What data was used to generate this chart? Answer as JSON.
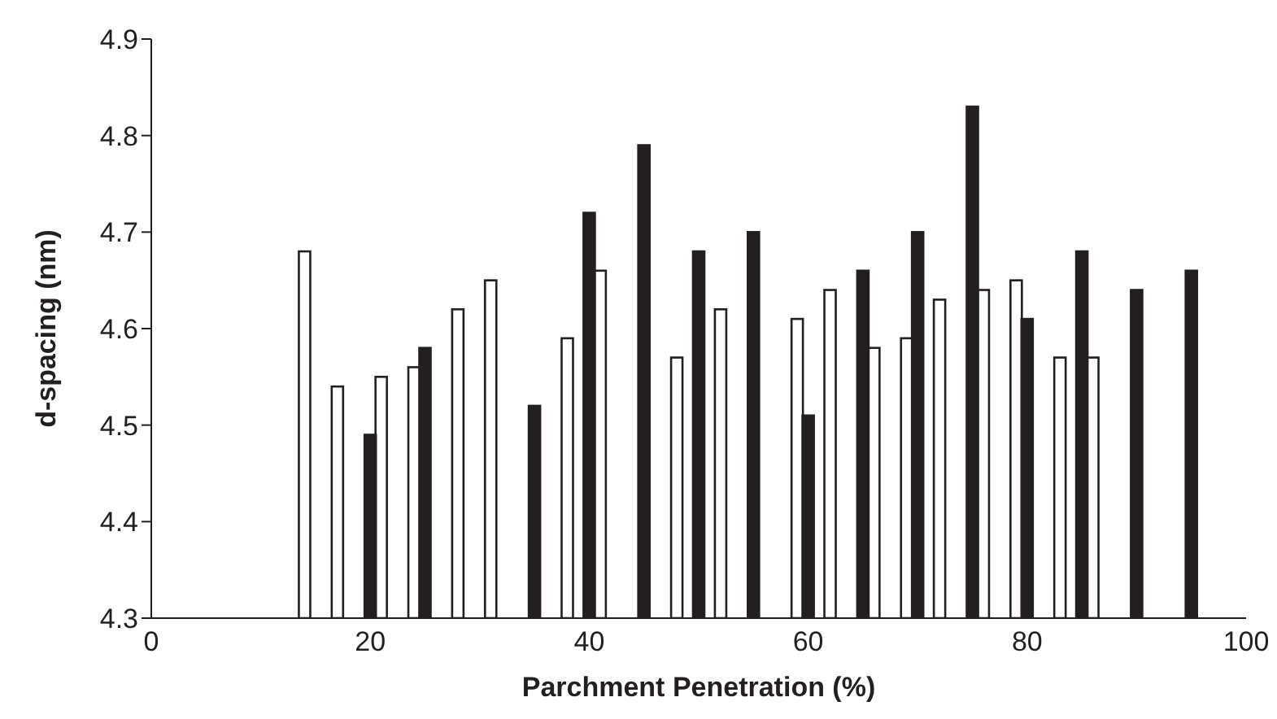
{
  "chart_data": {
    "type": "bar",
    "xlabel": "Parchment Penetration (%)",
    "ylabel": "d-spacing (nm)",
    "series": [
      {
        "color": "#ffffff",
        "x": [
          14,
          17,
          21,
          24,
          28,
          31,
          38,
          41,
          48,
          52,
          59,
          62,
          66,
          69,
          72,
          76,
          79,
          83,
          86
        ],
        "values": [
          4.68,
          4.54,
          4.55,
          4.56,
          4.62,
          4.65,
          4.59,
          4.66,
          4.57,
          4.62,
          4.61,
          4.64,
          4.58,
          4.59,
          4.63,
          4.64,
          4.65,
          4.57,
          4.57
        ]
      },
      {
        "color": "#231f20",
        "x": [
          20,
          25,
          35,
          40,
          45,
          50,
          55,
          60,
          65,
          70,
          75,
          80,
          85,
          90,
          95
        ],
        "values": [
          4.49,
          4.58,
          4.52,
          4.72,
          4.79,
          4.68,
          4.7,
          4.51,
          4.66,
          4.7,
          4.83,
          4.61,
          4.68,
          4.64,
          4.66
        ]
      }
    ],
    "xlim": [
      0,
      100
    ],
    "xticks": [
      0,
      20,
      40,
      60,
      80,
      100
    ],
    "ylim": [
      4.3,
      4.9
    ],
    "yticks": [
      4.3,
      4.4,
      4.5,
      4.6,
      4.7,
      4.8,
      4.9
    ]
  }
}
